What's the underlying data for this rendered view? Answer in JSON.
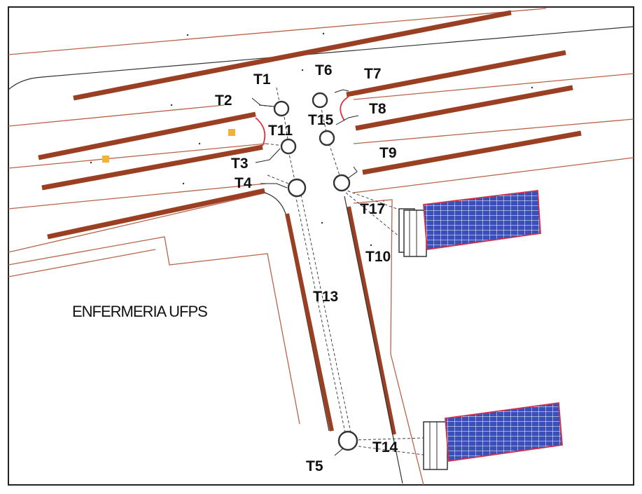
{
  "building_label": "ENFERMERIA UFPS",
  "nodes": [
    {
      "id": "t1",
      "label": "T1"
    },
    {
      "id": "t2",
      "label": "T2"
    },
    {
      "id": "t3",
      "label": "T3"
    },
    {
      "id": "t4",
      "label": "T4"
    },
    {
      "id": "t5",
      "label": "T5"
    },
    {
      "id": "t6",
      "label": "T6"
    },
    {
      "id": "t7",
      "label": "T7"
    },
    {
      "id": "t8",
      "label": "T8"
    },
    {
      "id": "t9",
      "label": "T9"
    },
    {
      "id": "t10",
      "label": "T10"
    },
    {
      "id": "t11",
      "label": "T11"
    },
    {
      "id": "t13",
      "label": "T13"
    },
    {
      "id": "t14",
      "label": "T14"
    },
    {
      "id": "t15",
      "label": "T15"
    },
    {
      "id": "t17",
      "label": "T17"
    }
  ],
  "colors": {
    "wall": "#9a3f22",
    "boundary": "#b8644a",
    "panel_fill": "#3a4fb8",
    "panel_grid": "#ffffff",
    "panel_border": "#d0344a",
    "marker": "#f2b233"
  }
}
